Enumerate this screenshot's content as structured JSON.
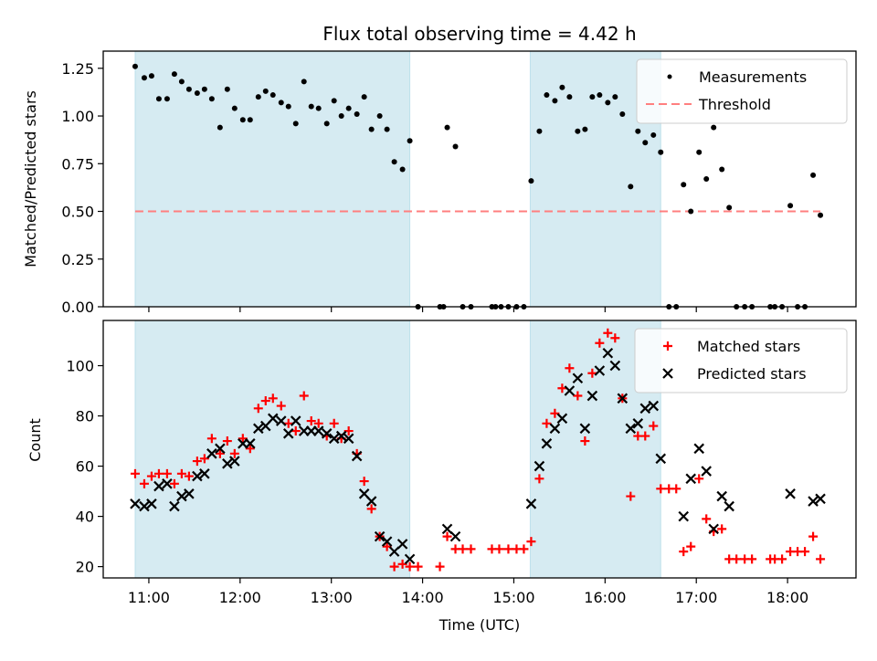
{
  "chart_data": [
    {
      "type": "scatter",
      "panel": "top",
      "title": "Flux total observing time = 4.42 h",
      "xlabel": "",
      "ylabel": "Matched/Predicted stars",
      "xlim": [
        10.5,
        18.75
      ],
      "ylim": [
        0,
        1.34
      ],
      "yticks": [
        0.0,
        0.25,
        0.5,
        0.75,
        1.0,
        1.25
      ],
      "ytick_labels": [
        "0.00",
        "0.25",
        "0.50",
        "0.75",
        "1.00",
        "1.25"
      ],
      "xticks": [
        11,
        12,
        13,
        14,
        15,
        16,
        17,
        18
      ],
      "xtick_labels_shown": false,
      "shaded_intervals": [
        [
          10.85,
          13.86
        ],
        [
          15.18,
          16.61
        ]
      ],
      "shade_color": "#add8e6",
      "legend": {
        "location": "upper right",
        "entries": [
          "Measurements",
          "Threshold"
        ]
      },
      "series": [
        {
          "name": "Measurements",
          "marker": "dot",
          "color": "#000000",
          "x": [
            10.85,
            10.95,
            11.03,
            11.11,
            11.2,
            11.28,
            11.36,
            11.44,
            11.53,
            11.61,
            11.69,
            11.78,
            11.86,
            11.94,
            12.03,
            12.11,
            12.2,
            12.28,
            12.36,
            12.45,
            12.53,
            12.61,
            12.7,
            12.78,
            12.86,
            12.95,
            13.03,
            13.11,
            13.19,
            13.28,
            13.36,
            13.44,
            13.53,
            13.61,
            13.69,
            13.78,
            13.86,
            13.95,
            14.19,
            14.23,
            14.27,
            14.36,
            14.44,
            14.53,
            14.76,
            14.8,
            14.86,
            14.94,
            15.03,
            15.11,
            15.19,
            15.28,
            15.36,
            15.45,
            15.53,
            15.61,
            15.7,
            15.78,
            15.86,
            15.94,
            16.03,
            16.11,
            16.19,
            16.28,
            16.36,
            16.44,
            16.53,
            16.61,
            16.7,
            16.78,
            16.86,
            16.94,
            17.03,
            17.11,
            17.19,
            17.28,
            17.36,
            17.44,
            17.53,
            17.61,
            17.81,
            17.86,
            17.94,
            18.03,
            18.11,
            18.19,
            18.28,
            18.36
          ],
          "y": [
            1.26,
            1.2,
            1.21,
            1.09,
            1.09,
            1.22,
            1.18,
            1.14,
            1.12,
            1.14,
            1.09,
            0.94,
            1.14,
            1.04,
            0.98,
            0.98,
            1.1,
            1.13,
            1.11,
            1.07,
            1.05,
            0.96,
            1.18,
            1.05,
            1.04,
            0.96,
            1.08,
            1.0,
            1.04,
            1.01,
            1.1,
            0.93,
            1.0,
            0.93,
            0.76,
            0.72,
            0.87,
            0.0,
            0.0,
            0.0,
            0.94,
            0.84,
            0.0,
            0.0,
            0.0,
            0.0,
            0.0,
            0.0,
            0.0,
            0.0,
            0.66,
            0.92,
            1.11,
            1.08,
            1.15,
            1.1,
            0.92,
            0.93,
            1.1,
            1.11,
            1.07,
            1.1,
            1.01,
            0.63,
            0.92,
            0.86,
            0.9,
            0.81,
            0.0,
            0.0,
            0.64,
            0.5,
            0.81,
            0.67,
            0.94,
            0.72,
            0.52,
            0.0,
            0.0,
            0.0,
            0.0,
            0.0,
            0.0,
            0.53,
            0.0,
            0.0,
            0.69,
            0.48
          ]
        },
        {
          "name": "Threshold",
          "style": "dashed",
          "color": "#ff7f7f",
          "x": [
            10.85,
            18.36
          ],
          "y": [
            0.5,
            0.5
          ]
        }
      ]
    },
    {
      "type": "scatter",
      "panel": "bottom",
      "title": "",
      "xlabel": "Time (UTC)",
      "ylabel": "Count",
      "xlim": [
        10.5,
        18.75
      ],
      "ylim": [
        15.5,
        118
      ],
      "yticks": [
        20,
        40,
        60,
        80,
        100
      ],
      "ytick_labels": [
        "20",
        "40",
        "60",
        "80",
        "100"
      ],
      "xticks": [
        11,
        12,
        13,
        14,
        15,
        16,
        17,
        18
      ],
      "xtick_labels": [
        "11:00",
        "12:00",
        "13:00",
        "14:00",
        "15:00",
        "16:00",
        "17:00",
        "18:00"
      ],
      "shaded_intervals": [
        [
          10.85,
          13.86
        ],
        [
          15.18,
          16.61
        ]
      ],
      "shade_color": "#add8e6",
      "legend": {
        "location": "upper right",
        "entries": [
          "Matched stars",
          "Predicted stars"
        ]
      },
      "series": [
        {
          "name": "Matched stars",
          "marker": "plus",
          "color": "#ff0000",
          "x": [
            10.85,
            10.95,
            11.03,
            11.11,
            11.2,
            11.28,
            11.36,
            11.44,
            11.53,
            11.61,
            11.69,
            11.78,
            11.86,
            11.94,
            12.03,
            12.11,
            12.2,
            12.28,
            12.36,
            12.45,
            12.53,
            12.61,
            12.7,
            12.78,
            12.86,
            12.95,
            13.03,
            13.11,
            13.19,
            13.28,
            13.36,
            13.44,
            13.53,
            13.61,
            13.69,
            13.78,
            13.86,
            13.95,
            14.19,
            14.27,
            14.36,
            14.44,
            14.53,
            14.76,
            14.84,
            14.94,
            15.03,
            15.11,
            15.19,
            15.28,
            15.36,
            15.45,
            15.53,
            15.61,
            15.7,
            15.78,
            15.86,
            15.94,
            16.03,
            16.11,
            16.19,
            16.28,
            16.36,
            16.44,
            16.53,
            16.61,
            16.7,
            16.78,
            16.86,
            16.94,
            17.03,
            17.11,
            17.19,
            17.28,
            17.36,
            17.44,
            17.53,
            17.61,
            17.81,
            17.86,
            17.94,
            18.03,
            18.11,
            18.19,
            18.28,
            18.36
          ],
          "y": [
            57,
            53,
            56,
            57,
            57,
            53,
            57,
            56,
            62,
            63,
            71,
            65,
            70,
            65,
            71,
            67,
            83,
            86,
            87,
            84,
            77,
            74,
            88,
            78,
            77,
            72,
            77,
            71,
            74,
            65,
            54,
            43,
            32,
            28,
            20,
            21,
            20,
            20,
            20,
            32,
            27,
            27,
            27,
            27,
            27,
            27,
            27,
            27,
            30,
            55,
            77,
            81,
            91,
            99,
            88,
            70,
            97,
            109,
            113,
            111,
            87,
            48,
            72,
            72,
            76,
            51,
            51,
            51,
            26,
            28,
            55,
            39,
            34,
            35,
            23,
            23,
            23,
            23,
            23,
            23,
            23,
            26,
            26,
            26,
            32,
            23
          ]
        },
        {
          "name": "Predicted stars",
          "marker": "x",
          "color": "#000000",
          "x": [
            10.85,
            10.95,
            11.03,
            11.11,
            11.2,
            11.28,
            11.36,
            11.44,
            11.53,
            11.61,
            11.69,
            11.78,
            11.86,
            11.94,
            12.03,
            12.11,
            12.2,
            12.28,
            12.36,
            12.45,
            12.53,
            12.61,
            12.7,
            12.78,
            12.86,
            12.95,
            13.03,
            13.11,
            13.19,
            13.28,
            13.36,
            13.44,
            13.53,
            13.61,
            13.69,
            13.78,
            13.86,
            14.27,
            14.36,
            15.19,
            15.28,
            15.36,
            15.45,
            15.53,
            15.61,
            15.7,
            15.78,
            15.86,
            15.94,
            16.03,
            16.11,
            16.19,
            16.28,
            16.36,
            16.44,
            16.53,
            16.61,
            16.86,
            16.94,
            17.03,
            17.11,
            17.19,
            17.28,
            17.36,
            18.03,
            18.28,
            18.36
          ],
          "y": [
            45,
            44,
            45,
            52,
            53,
            44,
            48,
            49,
            56,
            57,
            65,
            67,
            61,
            62,
            69,
            69,
            75,
            76,
            79,
            78,
            73,
            78,
            74,
            74,
            74,
            73,
            71,
            72,
            71,
            64,
            49,
            46,
            32,
            30,
            26,
            29,
            23,
            35,
            32,
            45,
            60,
            69,
            75,
            79,
            90,
            95,
            75,
            88,
            98,
            105,
            100,
            87,
            75,
            77,
            83,
            84,
            63,
            40,
            55,
            67,
            58,
            35,
            48,
            44,
            49,
            46,
            47
          ]
        }
      ]
    }
  ]
}
